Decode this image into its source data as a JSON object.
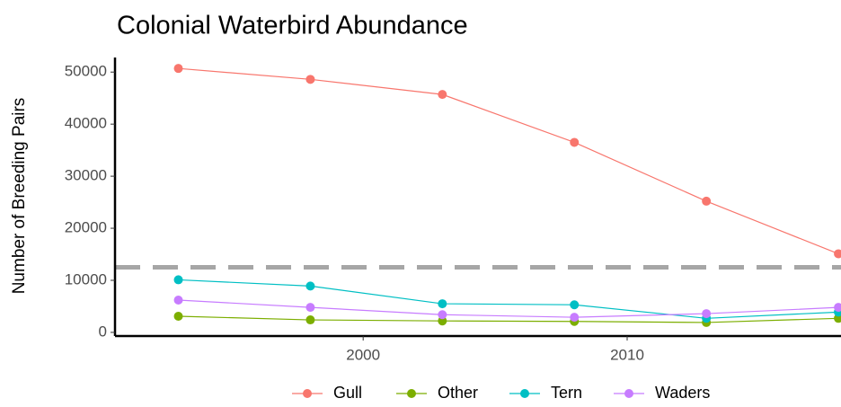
{
  "chart_data": {
    "type": "line",
    "title": "Colonial Waterbird Abundance",
    "y_label": "Number of Breeding Pairs",
    "x": [
      1993,
      1998,
      2003,
      2008,
      2013,
      2018
    ],
    "series": [
      {
        "name": "Gull",
        "color": "#F8766D",
        "values": [
          50700,
          48600,
          45700,
          36500,
          25200,
          15100
        ]
      },
      {
        "name": "Other",
        "color": "#7CAE00",
        "values": [
          3100,
          2400,
          2200,
          2100,
          1900,
          2700
        ]
      },
      {
        "name": "Tern",
        "color": "#00BFC4",
        "values": [
          10100,
          8900,
          5500,
          5300,
          2700,
          3900
        ]
      },
      {
        "name": "Waders",
        "color": "#C77CFF",
        "values": [
          6200,
          4800,
          3400,
          2900,
          3600,
          4800
        ]
      }
    ],
    "hline": 12500,
    "hline_color": "#a6a6a6",
    "xlim": [
      1990.6,
      2018.1
    ],
    "xticks": [
      2000,
      2010
    ],
    "ylim": [
      -700,
      52800
    ],
    "yticks": [
      0,
      10000,
      20000,
      30000,
      40000,
      50000
    ],
    "legend": "bottom"
  }
}
